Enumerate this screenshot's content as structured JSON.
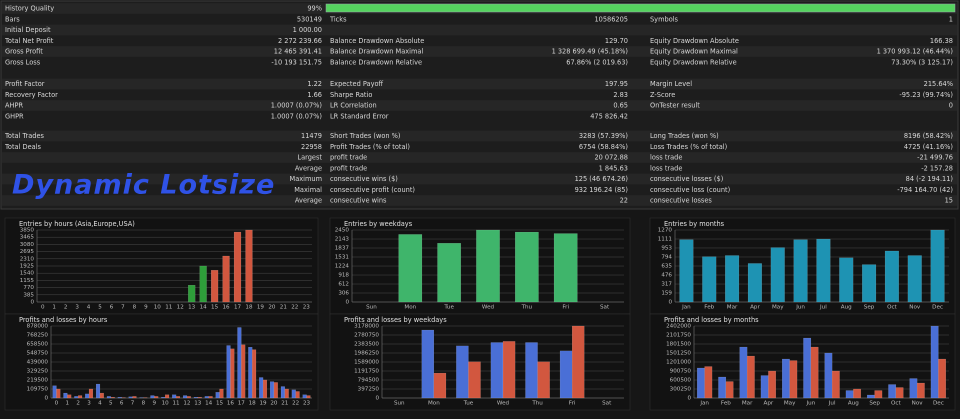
{
  "report": {
    "overlay_title": "Dynamic Lotsize",
    "sections": [
      [
        [
          [
            "History Quality",
            "99%"
          ]
        ],
        [
          [
            "Bars",
            "530149"
          ],
          [
            "Ticks",
            "10586205"
          ],
          [
            "Symbols",
            "1"
          ]
        ],
        [
          [
            "Initial Deposit",
            "1 000.00"
          ]
        ],
        [
          [
            "Total Net Profit",
            "2 272 239.66"
          ],
          [
            "Balance Drawdown Absolute",
            "129.70"
          ],
          [
            "Equity Drawdown Absolute",
            "166.38"
          ]
        ],
        [
          [
            "Gross Profit",
            "12 465 391.41"
          ],
          [
            "Balance Drawdown Maximal",
            "1 328 699.49 (45.18%)"
          ],
          [
            "Equity Drawdown Maximal",
            "1 370 993.12 (46.44%)"
          ]
        ],
        [
          [
            "Gross Loss",
            "-10 193 151.75"
          ],
          [
            "Balance Drawdown Relative",
            "67.86% (2 019.63)"
          ],
          [
            "Equity Drawdown Relative",
            "73.30% (3 125.17)"
          ]
        ]
      ],
      [
        [
          [
            "Profit Factor",
            "1.22"
          ],
          [
            "Expected Payoff",
            "197.95"
          ],
          [
            "Margin Level",
            "215.64%"
          ]
        ],
        [
          [
            "Recovery Factor",
            "1.66"
          ],
          [
            "Sharpe Ratio",
            "2.83"
          ],
          [
            "Z-Score",
            "-95.23 (99.74%)"
          ]
        ],
        [
          [
            "AHPR",
            "1.0007 (0.07%)"
          ],
          [
            "LR Correlation",
            "0.65"
          ],
          [
            "OnTester result",
            "0"
          ]
        ],
        [
          [
            "GHPR",
            "1.0007 (0.07%)"
          ],
          [
            "LR Standard Error",
            "475 826.42"
          ]
        ]
      ],
      [
        [
          [
            "Total Trades",
            "11479"
          ],
          [
            "Short Trades (won %)",
            "3283 (57.39%)"
          ],
          [
            "Long Trades (won %)",
            "8196 (58.42%)"
          ]
        ],
        [
          [
            "Total Deals",
            "22958"
          ],
          [
            "Profit Trades (% of total)",
            "6754 (58.84%)"
          ],
          [
            "Loss Trades (% of total)",
            "4725 (41.16%)"
          ]
        ],
        [
          [
            "Largest"
          ],
          [
            "profit trade",
            "20 072.88"
          ],
          [
            "loss trade",
            "-21 499.76"
          ]
        ],
        [
          [
            "Average"
          ],
          [
            "profit trade",
            "1 845.63"
          ],
          [
            "loss trade",
            "-2 157.28"
          ]
        ],
        [
          [
            "Maximum"
          ],
          [
            "consecutive wins ($)",
            "125 (46 674.26)"
          ],
          [
            "consecutive losses ($)",
            "84 (-2 194.11)"
          ]
        ],
        [
          [
            "Maximal"
          ],
          [
            "consecutive profit (count)",
            "932 196.24 (85)"
          ],
          [
            "consecutive loss (count)",
            "-794 164.70 (42)"
          ]
        ],
        [
          [
            "Average"
          ],
          [
            "consecutive wins",
            "22"
          ],
          [
            "consecutive losses",
            "15"
          ]
        ]
      ]
    ]
  },
  "chart_data": [
    {
      "type": "bar",
      "title": "Entries by hours (Asia,Europe,USA)",
      "categories": [
        "0",
        "1",
        "2",
        "3",
        "4",
        "5",
        "6",
        "7",
        "8",
        "9",
        "10",
        "11",
        "12",
        "13",
        "14",
        "15",
        "16",
        "17",
        "18",
        "19",
        "20",
        "21",
        "22",
        "23"
      ],
      "values": [
        0,
        0,
        0,
        0,
        0,
        0,
        0,
        0,
        0,
        0,
        0,
        0,
        0,
        900,
        1925,
        1700,
        2460,
        3740,
        3850,
        0,
        0,
        0,
        0,
        0
      ],
      "colors": [
        "#2e9e3a",
        "#2e9e3a",
        "#2e9e3a",
        "#2e9e3a",
        "#2e9e3a",
        "#2e9e3a",
        "#2e9e3a",
        "#2e9e3a",
        "#2e9e3a",
        "#2e9e3a",
        "#2e9e3a",
        "#2e9e3a",
        "#2e9e3a",
        "#2e9e3a",
        "#2e9e3a",
        "#d2573f",
        "#d2573f",
        "#d2573f",
        "#d2573f",
        "#d2573f",
        "#d2573f",
        "#d2573f",
        "#d2573f",
        "#d2573f"
      ],
      "ylim": [
        0,
        3850
      ],
      "yticks": [
        0,
        385,
        770,
        1155,
        1540,
        1925,
        2310,
        2695,
        3080,
        3465,
        3850
      ],
      "grid": true
    },
    {
      "type": "bar",
      "title": "Entries by weekdays",
      "categories": [
        "Sun",
        "Mon",
        "Tue",
        "Wed",
        "Thu",
        "Fri",
        "Sat"
      ],
      "values": [
        0,
        2300,
        2000,
        2450,
        2380,
        2330,
        0
      ],
      "color": "#3fb56b",
      "ylim": [
        0,
        2450
      ],
      "yticks": [
        0,
        306,
        612,
        918,
        1224,
        1531,
        1837,
        2143,
        2450
      ],
      "grid": true
    },
    {
      "type": "bar",
      "title": "Entries by months",
      "categories": [
        "Jan",
        "Feb",
        "Mar",
        "Apr",
        "May",
        "Jun",
        "Jul",
        "Aug",
        "Sep",
        "Oct",
        "Nov",
        "Dec"
      ],
      "values": [
        1100,
        800,
        820,
        680,
        960,
        1100,
        1110,
        780,
        660,
        900,
        820,
        1270
      ],
      "color": "#1e93b3",
      "ylim": [
        0,
        1270
      ],
      "yticks": [
        0,
        159,
        317,
        476,
        635,
        794,
        953,
        1111,
        1270
      ],
      "grid": true
    },
    {
      "type": "grouped-bar",
      "title": "Profits and losses by hours",
      "categories": [
        "0",
        "1",
        "2",
        "3",
        "4",
        "5",
        "6",
        "7",
        "8",
        "9",
        "10",
        "11",
        "12",
        "13",
        "14",
        "15",
        "16",
        "17",
        "18",
        "19",
        "20",
        "21",
        "22",
        "23"
      ],
      "series": [
        {
          "color": "#4a6fd6",
          "values": [
            150000,
            60000,
            20000,
            50000,
            170000,
            20000,
            10000,
            15000,
            5000,
            30000,
            10000,
            40000,
            30000,
            10000,
            20000,
            70000,
            640000,
            860000,
            620000,
            250000,
            200000,
            140000,
            100000,
            40000
          ]
        },
        {
          "color": "#d2573f",
          "values": [
            110000,
            40000,
            30000,
            110000,
            60000,
            10000,
            5000,
            20000,
            5000,
            20000,
            40000,
            20000,
            20000,
            10000,
            20000,
            110000,
            600000,
            650000,
            590000,
            220000,
            190000,
            110000,
            80000,
            30000
          ]
        }
      ],
      "ylim": [
        0,
        878000
      ],
      "yticks": [
        0,
        109750,
        219500,
        329250,
        439000,
        548750,
        658500,
        768250,
        878000
      ],
      "grid": true
    },
    {
      "type": "grouped-bar",
      "title": "Profits and losses by weekdays",
      "categories": [
        "Sun",
        "Mon",
        "Tue",
        "Wed",
        "Thu",
        "Fri",
        "Sat"
      ],
      "series": [
        {
          "color": "#4a6fd6",
          "values": [
            0,
            3000000,
            2300000,
            2450000,
            2450000,
            2080000,
            0
          ]
        },
        {
          "color": "#d2573f",
          "values": [
            0,
            1100000,
            1600000,
            2500000,
            1600000,
            3178000,
            0
          ]
        }
      ],
      "ylim": [
        0,
        3178000
      ],
      "yticks": [
        0,
        397250,
        794500,
        1191750,
        1589000,
        1986250,
        2383500,
        2780750,
        3178000
      ],
      "grid": true
    },
    {
      "type": "grouped-bar",
      "title": "Profits and losses by months",
      "categories": [
        "Jan",
        "Feb",
        "Mar",
        "Apr",
        "May",
        "Jun",
        "Jul",
        "Aug",
        "Sep",
        "Oct",
        "Nov",
        "Dec"
      ],
      "series": [
        {
          "color": "#4a6fd6",
          "values": [
            1000000,
            700000,
            1700000,
            750000,
            1300000,
            2000000,
            1500000,
            250000,
            100000,
            450000,
            650000,
            2400000
          ]
        },
        {
          "color": "#d2573f",
          "values": [
            1050000,
            550000,
            1400000,
            900000,
            1250000,
            1700000,
            900000,
            300000,
            250000,
            350000,
            500000,
            1300000
          ]
        }
      ],
      "ylim": [
        0,
        2402000
      ],
      "yticks": [
        0,
        300250,
        600500,
        900750,
        1201000,
        1501250,
        1801500,
        2101750,
        2402000
      ],
      "grid": true
    }
  ]
}
